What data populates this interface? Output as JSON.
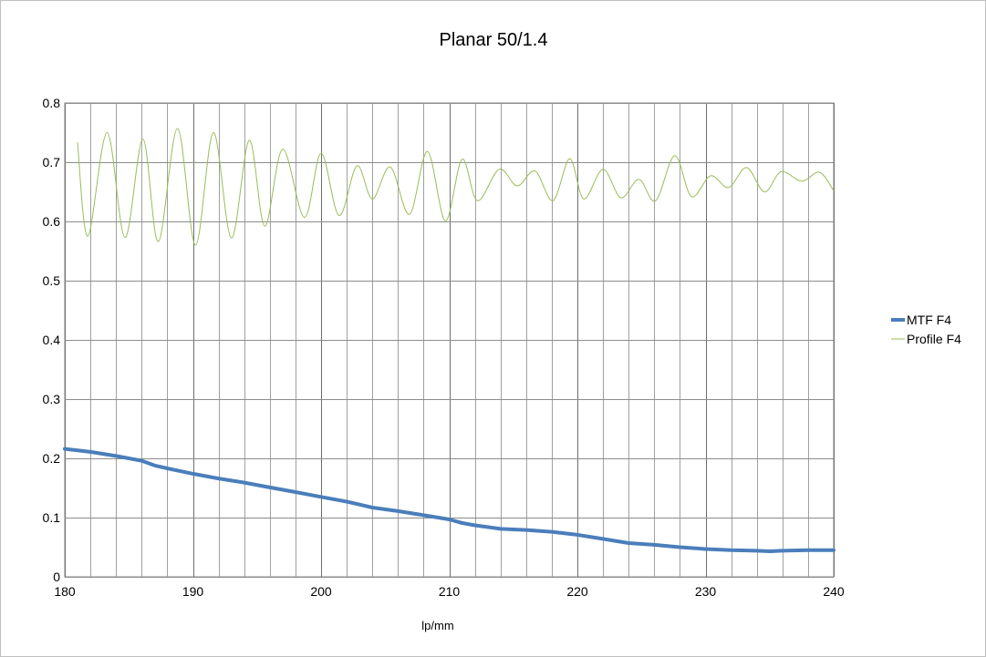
{
  "chart_data": {
    "type": "line",
    "title": "Planar 50/1.4",
    "xlabel": "lp/mm",
    "ylabel": "",
    "xlim": [
      180,
      240
    ],
    "ylim": [
      0,
      0.8
    ],
    "x_ticks": [
      180,
      190,
      200,
      210,
      220,
      230,
      240
    ],
    "x_tick_labels": [
      "180",
      "190",
      "200",
      "210",
      "220",
      "230",
      "240"
    ],
    "y_ticks": [
      0,
      0.1,
      0.2,
      0.3,
      0.4,
      0.5,
      0.6,
      0.7,
      0.8
    ],
    "y_tick_labels": [
      "0",
      "0.1",
      "0.2",
      "0.3",
      "0.4",
      "0.5",
      "0.6",
      "0.7",
      "0.8"
    ],
    "x_minor_step": 2,
    "grid": true,
    "legend_position": "right",
    "series": [
      {
        "name": "MTF F4",
        "color": "#4a7ebb",
        "x": [
          180,
          182,
          184,
          186,
          187,
          188,
          190,
          192,
          194,
          196,
          198,
          200,
          202,
          203,
          204,
          206,
          208,
          210,
          211,
          212,
          213,
          214,
          216,
          218,
          220,
          222,
          224,
          226,
          228,
          230,
          232,
          234,
          235,
          236,
          238,
          240
        ],
        "y": [
          0.216,
          0.211,
          0.204,
          0.196,
          0.188,
          0.183,
          0.174,
          0.166,
          0.159,
          0.151,
          0.143,
          0.135,
          0.127,
          0.122,
          0.117,
          0.111,
          0.104,
          0.097,
          0.091,
          0.087,
          0.084,
          0.081,
          0.079,
          0.076,
          0.071,
          0.064,
          0.057,
          0.054,
          0.05,
          0.047,
          0.045,
          0.044,
          0.043,
          0.044,
          0.045,
          0.045
        ]
      },
      {
        "name": "Profile F4",
        "color": "#9bbb59",
        "x": [
          181.0,
          181.8,
          183.3,
          184.7,
          186.1,
          187.3,
          188.8,
          190.2,
          191.6,
          193.0,
          194.4,
          195.6,
          197.0,
          198.7,
          200.0,
          201.4,
          202.8,
          204.0,
          205.4,
          206.9,
          208.3,
          209.7,
          211.0,
          212.2,
          213.9,
          215.3,
          216.7,
          218.1,
          219.4,
          220.5,
          222.0,
          223.4,
          224.8,
          226.1,
          227.6,
          228.9,
          230.4,
          231.8,
          233.2,
          234.6,
          235.9,
          237.5,
          238.9,
          240.0
        ],
        "y": [
          0.733,
          0.575,
          0.75,
          0.573,
          0.739,
          0.566,
          0.757,
          0.56,
          0.75,
          0.572,
          0.737,
          0.592,
          0.722,
          0.607,
          0.715,
          0.61,
          0.694,
          0.638,
          0.692,
          0.612,
          0.718,
          0.601,
          0.705,
          0.635,
          0.688,
          0.66,
          0.685,
          0.635,
          0.706,
          0.638,
          0.688,
          0.64,
          0.671,
          0.635,
          0.711,
          0.642,
          0.677,
          0.657,
          0.691,
          0.65,
          0.684,
          0.668,
          0.683,
          0.652
        ]
      }
    ]
  }
}
